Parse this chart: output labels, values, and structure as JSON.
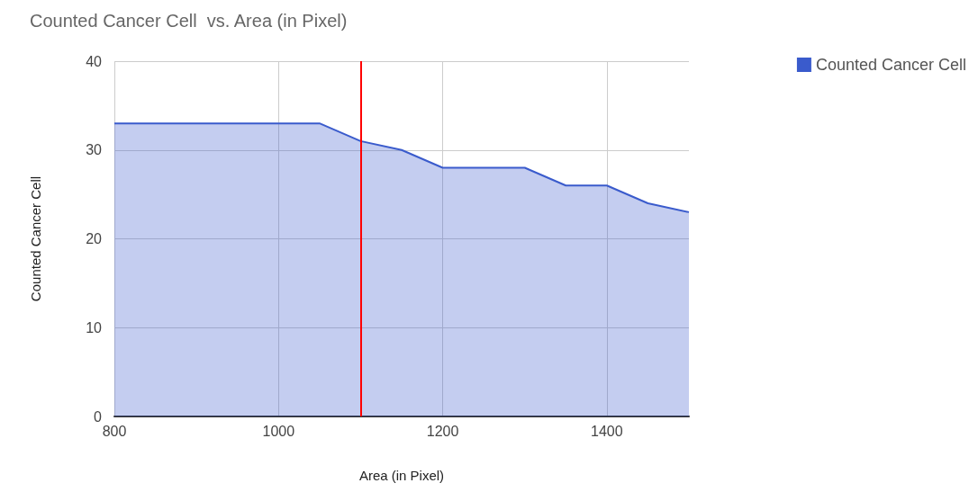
{
  "chart_data": {
    "type": "area",
    "title": "Counted Cancer Cell  vs. Area (in Pixel)",
    "xlabel": "Area (in Pixel)",
    "ylabel": "Counted Cancer Cell",
    "x": [
      800,
      1050,
      1100,
      1150,
      1200,
      1300,
      1350,
      1400,
      1450,
      1500
    ],
    "series": [
      {
        "name": "Counted Cancer Cell",
        "color": "#3a5bcc",
        "values": [
          33,
          33,
          31,
          30,
          28,
          28,
          26,
          26,
          24,
          23
        ]
      }
    ],
    "xlim": [
      800,
      1500
    ],
    "xticks": [
      800,
      1000,
      1200,
      1400
    ],
    "ylim": [
      0,
      40
    ],
    "yticks": [
      0,
      10,
      20,
      30,
      40
    ],
    "ref_lines": [
      {
        "axis": "x",
        "value": 1100,
        "color": "#ff0000"
      }
    ],
    "grid": true,
    "legend": "top right",
    "marker": "none"
  }
}
